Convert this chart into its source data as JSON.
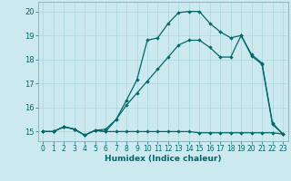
{
  "xlabel": "Humidex (Indice chaleur)",
  "bg_color": "#cde9f0",
  "line_color": "#006868",
  "grid_color": "#b0d8e0",
  "xlim": [
    -0.5,
    23.5
  ],
  "ylim": [
    14.6,
    20.4
  ],
  "yticks": [
    15,
    16,
    17,
    18,
    19,
    20
  ],
  "xticks": [
    0,
    1,
    2,
    3,
    4,
    5,
    6,
    7,
    8,
    9,
    10,
    11,
    12,
    13,
    14,
    15,
    16,
    17,
    18,
    19,
    20,
    21,
    22,
    23
  ],
  "line1_x": [
    0,
    1,
    2,
    3,
    4,
    5,
    6,
    7,
    8,
    9,
    10,
    11,
    12,
    13,
    14,
    15,
    16,
    17,
    18,
    19,
    20,
    21,
    22,
    23
  ],
  "line1_y": [
    15.0,
    15.0,
    15.2,
    15.1,
    14.85,
    15.05,
    15.0,
    15.0,
    15.0,
    15.0,
    15.0,
    15.0,
    15.0,
    15.0,
    15.0,
    14.95,
    14.95,
    14.95,
    14.95,
    14.95,
    14.95,
    14.95,
    14.95,
    14.9
  ],
  "line2_x": [
    0,
    1,
    2,
    3,
    4,
    5,
    6,
    7,
    8,
    9,
    10,
    11,
    12,
    13,
    14,
    15,
    16,
    17,
    18,
    19,
    20,
    21,
    22,
    23
  ],
  "line2_y": [
    15.0,
    15.0,
    15.2,
    15.1,
    14.85,
    15.05,
    15.1,
    15.5,
    16.1,
    16.6,
    17.1,
    17.6,
    18.1,
    18.6,
    18.8,
    18.8,
    18.5,
    18.1,
    18.1,
    19.0,
    18.15,
    17.8,
    15.3,
    14.9
  ],
  "line3_x": [
    0,
    1,
    2,
    3,
    4,
    5,
    6,
    7,
    8,
    9,
    10,
    11,
    12,
    13,
    14,
    15,
    16,
    17,
    18,
    19,
    20,
    21,
    22,
    23
  ],
  "line3_y": [
    15.0,
    15.0,
    15.2,
    15.1,
    14.85,
    15.05,
    15.0,
    15.5,
    16.3,
    17.15,
    18.8,
    18.9,
    19.5,
    19.95,
    20.0,
    20.0,
    19.5,
    19.15,
    18.9,
    19.0,
    18.2,
    17.85,
    15.35,
    14.9
  ]
}
